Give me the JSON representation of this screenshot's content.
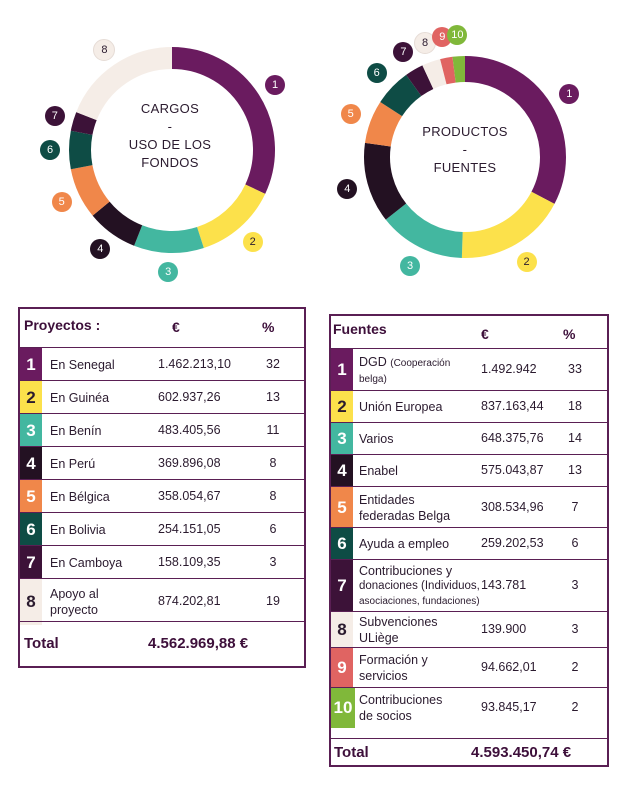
{
  "colors": {
    "1": "#6a1b5f",
    "2": "#fce14b",
    "3": "#43b7a0",
    "4": "#231122",
    "5": "#f0874a",
    "6": "#0e4c45",
    "7": "#3c1238",
    "8": "#f5ede7",
    "9": "#e06462",
    "10": "#80b83a"
  },
  "chart_data": [
    {
      "type": "pie",
      "title": "CARGOS - USO DE LOS FONDOS",
      "center_lines": [
        "CARGOS",
        "-",
        "USO DE LOS",
        "FONDOS"
      ],
      "labels": [
        "1",
        "2",
        "3",
        "4",
        "5",
        "6",
        "7",
        "8"
      ],
      "values": [
        32,
        13,
        11,
        8,
        8,
        6,
        3,
        19
      ]
    },
    {
      "type": "pie",
      "title": "PRODUCTOS - FUENTES",
      "center_lines": [
        "PRODUCTOS",
        "-",
        "FUENTES"
      ],
      "labels": [
        "1",
        "2",
        "3",
        "4",
        "5",
        "6",
        "7",
        "8",
        "9",
        "10"
      ],
      "values": [
        33,
        18,
        14,
        13,
        7,
        6,
        3,
        3,
        2,
        2
      ]
    }
  ],
  "left_table": {
    "title": "Proyectos :",
    "col_euro": "€",
    "col_pct": "%",
    "rows": [
      {
        "n": "1",
        "label": "En Senegal",
        "value": "1.462.213,10",
        "pct": "32"
      },
      {
        "n": "2",
        "label": "En Guinéa",
        "value": "602.937,26",
        "pct": "13"
      },
      {
        "n": "3",
        "label": "En Benín",
        "value": "483.405,56",
        "pct": "11"
      },
      {
        "n": "4",
        "label": "En Perú",
        "value": "369.896,08",
        "pct": "8"
      },
      {
        "n": "5",
        "label": "En Bélgica",
        "value": "358.054,67",
        "pct": "8"
      },
      {
        "n": "6",
        "label": "En Bolivia",
        "value": "254.151,05",
        "pct": "6"
      },
      {
        "n": "7",
        "label": "En Camboya",
        "value": "158.109,35",
        "pct": "3"
      },
      {
        "n": "8",
        "label": "Apoyo al proyecto",
        "label_l1": "Apoyo al",
        "label_l2": "proyecto",
        "value": "874.202,81",
        "pct": "19"
      }
    ],
    "total_label": "Total",
    "total_value": "4.562.969,88 €"
  },
  "right_table": {
    "title": "Fuentes",
    "col_euro": "€",
    "col_pct": "%",
    "rows": [
      {
        "n": "1",
        "label_main": "DGD",
        "label_small": "(Cooperación belga)",
        "label_l1": "DGD (Cooperación",
        "label_l2": "belga)",
        "value": "1.492.942",
        "pct": "33"
      },
      {
        "n": "2",
        "label_l1": "Unión Europea",
        "value": "837.163,44",
        "pct": "18"
      },
      {
        "n": "3",
        "label_l1": "Varios",
        "value": "648.375,76",
        "pct": "14"
      },
      {
        "n": "4",
        "label_l1": "Enabel",
        "value": "575.043,87",
        "pct": "13"
      },
      {
        "n": "5",
        "label_l1": "Entidades",
        "label_l2": "federadas Belga",
        "value": "308.534,96",
        "pct": "7"
      },
      {
        "n": "6",
        "label_l1": "Ayuda a empleo",
        "value": "259.202,53",
        "pct": "6"
      },
      {
        "n": "7",
        "label_l1": "Contribuciones y",
        "label_l2": "donaciones (Individuos,",
        "label_l3": "asociaciones, fundaciones)",
        "value": "143.781",
        "pct": "3"
      },
      {
        "n": "8",
        "label_l1": "Subvenciones",
        "label_l2": "ULiège",
        "value": "139.900",
        "pct": "3"
      },
      {
        "n": "9",
        "label_l1": "Formación y",
        "label_l2": "servicios",
        "value": "94.662,01",
        "pct": "2"
      },
      {
        "n": "10",
        "label_l1": "Contribuciones",
        "label_l2": "de socios",
        "value": "93.845,17",
        "pct": "2"
      }
    ],
    "total_label": "Total",
    "total_value": "4.593.450,74 €"
  }
}
